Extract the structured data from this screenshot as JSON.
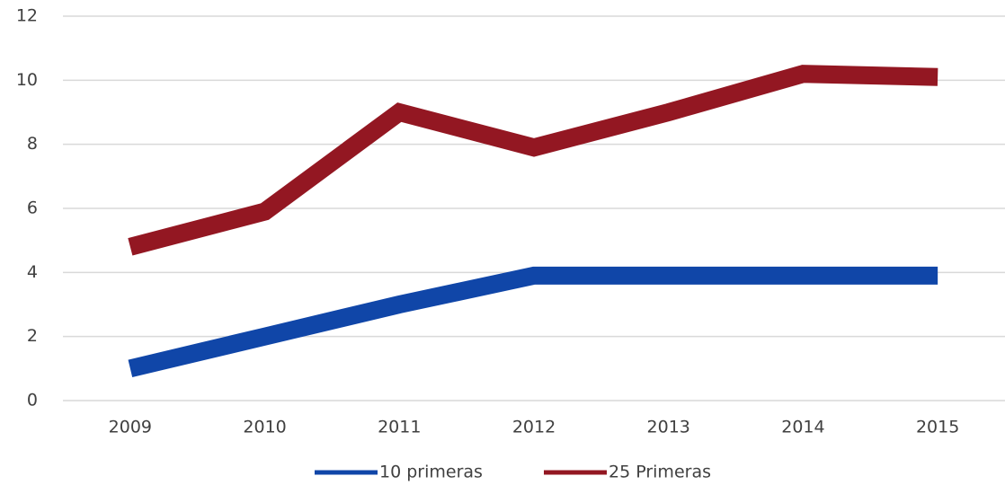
{
  "chart_data": {
    "type": "line",
    "categories": [
      "2009",
      "2010",
      "2011",
      "2012",
      "2013",
      "2014",
      "2015"
    ],
    "series": [
      {
        "name": "10 primeras",
        "color": "#1046a8",
        "values": [
          1,
          2,
          3,
          3.9,
          3.9,
          3.9,
          3.9
        ]
      },
      {
        "name": "25 Primeras",
        "color": "#931722",
        "values": [
          4.8,
          5.9,
          9.0,
          7.9,
          9.0,
          10.2,
          10.1
        ]
      }
    ],
    "ylim": [
      0,
      12
    ],
    "yticks": [
      0,
      2,
      4,
      6,
      8,
      10,
      12
    ],
    "grid": true,
    "legend": "bottom"
  }
}
